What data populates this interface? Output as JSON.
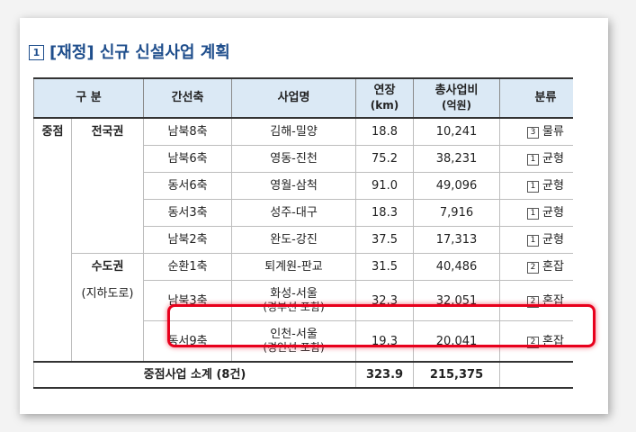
{
  "heading": {
    "number": "1",
    "title": "[재정] 신규 신설사업 계획"
  },
  "table": {
    "headers": {
      "category": "구 분",
      "axis": "간선축",
      "project": "사업명",
      "length_line1": "연장",
      "length_line2": "(km)",
      "cost_line1": "총사업비",
      "cost_line2": "(억원)",
      "type": "분류"
    },
    "group_label": "중점",
    "region1": "전국권",
    "region2": "수도권",
    "region2_sub": "(지하도로)",
    "rows": [
      {
        "axis": "남북8축",
        "project": "김해-밀양",
        "project_sub": "",
        "length": "18.8",
        "cost": "10,241",
        "type_num": "3",
        "type_label": "물류"
      },
      {
        "axis": "남북6축",
        "project": "영동-진천",
        "project_sub": "",
        "length": "75.2",
        "cost": "38,231",
        "type_num": "1",
        "type_label": "균형"
      },
      {
        "axis": "동서6축",
        "project": "영월-삼척",
        "project_sub": "",
        "length": "91.0",
        "cost": "49,096",
        "type_num": "1",
        "type_label": "균형"
      },
      {
        "axis": "동서3축",
        "project": "성주-대구",
        "project_sub": "",
        "length": "18.3",
        "cost": "7,916",
        "type_num": "1",
        "type_label": "균형"
      },
      {
        "axis": "남북2축",
        "project": "완도-강진",
        "project_sub": "",
        "length": "37.5",
        "cost": "17,313",
        "type_num": "1",
        "type_label": "균형"
      },
      {
        "axis": "순환1축",
        "project": "퇴계원-판교",
        "project_sub": "",
        "length": "31.5",
        "cost": "40,486",
        "type_num": "2",
        "type_label": "혼잡"
      },
      {
        "axis": "남북3축",
        "project": "화성-서울",
        "project_sub": "(경부선 포함)",
        "length": "32.3",
        "cost": "32,051",
        "type_num": "2",
        "type_label": "혼잡"
      },
      {
        "axis": "동서9축",
        "project": "인천-서울",
        "project_sub": "(경인선 포함)",
        "length": "19.3",
        "cost": "20,041",
        "type_num": "2",
        "type_label": "혼잡"
      }
    ],
    "total": {
      "label": "중점사업 소계 (8건)",
      "length": "323.9",
      "cost": "215,375"
    }
  }
}
